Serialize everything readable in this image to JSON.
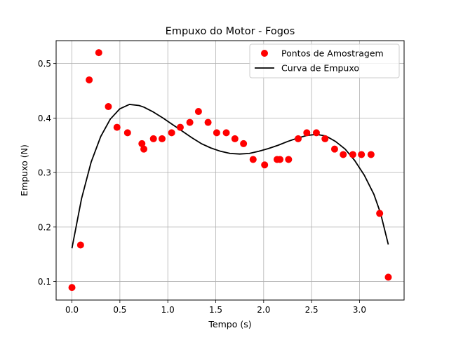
{
  "chart_data": {
    "type": "scatter",
    "title": "Empuxo do Motor - Fogos",
    "xlabel": "Tempo (s)",
    "ylabel": "Empuxo (N)",
    "xlim": [
      -0.165,
      3.465
    ],
    "ylim": [
      0.066,
      0.542
    ],
    "xticks": [
      0.0,
      0.5,
      1.0,
      1.5,
      2.0,
      2.5,
      3.0
    ],
    "xtick_labels": [
      "0.0",
      "0.5",
      "1.0",
      "1.5",
      "2.0",
      "2.5",
      "3.0"
    ],
    "yticks": [
      0.1,
      0.2,
      0.3,
      0.4,
      0.5
    ],
    "ytick_labels": [
      "0.1",
      "0.2",
      "0.3",
      "0.4",
      "0.5"
    ],
    "grid": true,
    "legend_position": "top-right",
    "series": [
      {
        "name": "Pontos de Amostragem",
        "kind": "scatter",
        "color": "#ff0000",
        "x": [
          0.0,
          0.09,
          0.18,
          0.28,
          0.38,
          0.47,
          0.58,
          0.73,
          0.75,
          0.85,
          0.94,
          1.04,
          1.13,
          1.23,
          1.32,
          1.42,
          1.51,
          1.61,
          1.7,
          1.79,
          1.89,
          2.01,
          2.14,
          2.17,
          2.26,
          2.36,
          2.45,
          2.55,
          2.64,
          2.74,
          2.83,
          2.93,
          3.02,
          3.12,
          3.21,
          3.3
        ],
        "y": [
          0.089,
          0.167,
          0.47,
          0.52,
          0.421,
          0.383,
          0.373,
          0.353,
          0.343,
          0.362,
          0.362,
          0.373,
          0.383,
          0.392,
          0.412,
          0.392,
          0.373,
          0.373,
          0.362,
          0.353,
          0.324,
          0.314,
          0.324,
          0.324,
          0.324,
          0.362,
          0.373,
          0.373,
          0.362,
          0.343,
          0.333,
          0.333,
          0.333,
          0.333,
          0.225,
          0.108
        ]
      },
      {
        "name": "Curva de Empuxo",
        "kind": "line",
        "color": "#000000",
        "x": [
          0.0,
          0.1,
          0.2,
          0.3,
          0.4,
          0.5,
          0.6,
          0.7,
          0.75,
          0.85,
          0.95,
          1.05,
          1.15,
          1.25,
          1.35,
          1.45,
          1.55,
          1.65,
          1.75,
          1.85,
          1.95,
          2.05,
          2.15,
          2.25,
          2.35,
          2.45,
          2.55,
          2.65,
          2.75,
          2.85,
          2.95,
          3.05,
          3.15,
          3.22,
          3.3
        ],
        "y": [
          0.161,
          0.252,
          0.319,
          0.366,
          0.398,
          0.417,
          0.425,
          0.423,
          0.42,
          0.411,
          0.4,
          0.388,
          0.376,
          0.364,
          0.353,
          0.345,
          0.339,
          0.335,
          0.334,
          0.335,
          0.339,
          0.344,
          0.35,
          0.357,
          0.363,
          0.368,
          0.37,
          0.367,
          0.357,
          0.343,
          0.322,
          0.295,
          0.26,
          0.225,
          0.168
        ]
      }
    ]
  }
}
